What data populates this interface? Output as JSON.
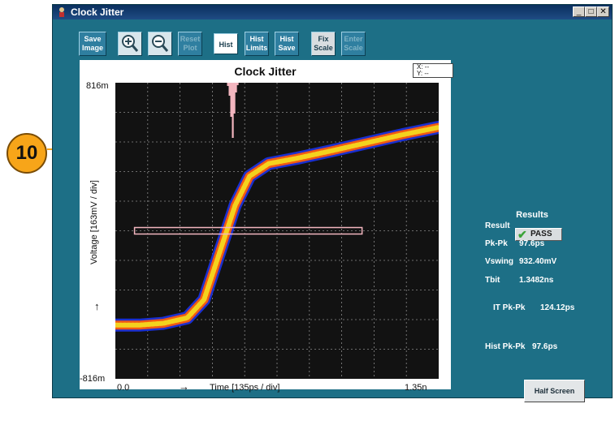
{
  "callout": {
    "number": "10",
    "color": "#f7a519"
  },
  "window": {
    "title": "Clock Jitter",
    "controls": {
      "minimize": "_",
      "maximize": "□",
      "close": "✕"
    },
    "bg_color": "#1d6f86"
  },
  "toolbar": {
    "save_image": "Save Image",
    "zoom_in_icon": "zoom-in",
    "zoom_out_icon": "zoom-out",
    "reset_plot": "Reset Plot",
    "hist": "Hist",
    "hist_limits": "Hist Limits",
    "hist_save": "Hist Save",
    "fix_scale": "Fix Scale",
    "enter_scale": "Enter Scale"
  },
  "plot": {
    "title": "Clock Jitter",
    "xy_readout": {
      "x": "X:  --",
      "y": "Y:  --"
    },
    "y_max": "816m",
    "y_min": "-816m",
    "y_axis_label": "Voltage   [163mV / div]",
    "x_min": "0.0",
    "x_max": "1.35n",
    "x_axis_label": "Time   [135ps / div]",
    "up_arrow": "↑",
    "right_arrow": "→"
  },
  "chart_data": {
    "type": "line",
    "x_unit": "ps",
    "y_unit": "V",
    "xlim": [
      0,
      1350
    ],
    "ylim": [
      -0.816,
      0.816
    ],
    "grid": true,
    "x_divisions": 10,
    "y_divisions": 10,
    "trace_colors": [
      "#1a2fd0",
      "#f25a12",
      "#f4d21e"
    ],
    "histogram_color": "#f3b6bf",
    "series": [
      {
        "x": [
          0,
          100,
          200,
          300,
          370,
          430,
          500,
          560,
          640,
          760,
          900,
          1000,
          1100,
          1200,
          1350
        ],
        "y": [
          -0.52,
          -0.52,
          -0.51,
          -0.48,
          -0.38,
          -0.14,
          0.14,
          0.3,
          0.37,
          0.4,
          0.44,
          0.47,
          0.5,
          0.53,
          0.57
        ]
      }
    ],
    "histogram_window": {
      "x": [
        80,
        1030
      ],
      "y": [
        0.0,
        0.0
      ]
    }
  },
  "results": {
    "title": "Results",
    "rows": [
      {
        "key": "Result",
        "value": "PASS"
      },
      {
        "key": "Pk-Pk",
        "value": "97.6ps"
      },
      {
        "key": "Vswing",
        "value": "932.40mV"
      },
      {
        "key": "Tbit",
        "value": "1.3482ns"
      }
    ],
    "it_pkpk_label": "IT Pk-Pk",
    "it_pkpk_value": "124.12ps",
    "hist_pkpk_label": "Hist Pk-Pk",
    "hist_pkpk_value": "97.6ps"
  },
  "half_screen": "Half Screen"
}
